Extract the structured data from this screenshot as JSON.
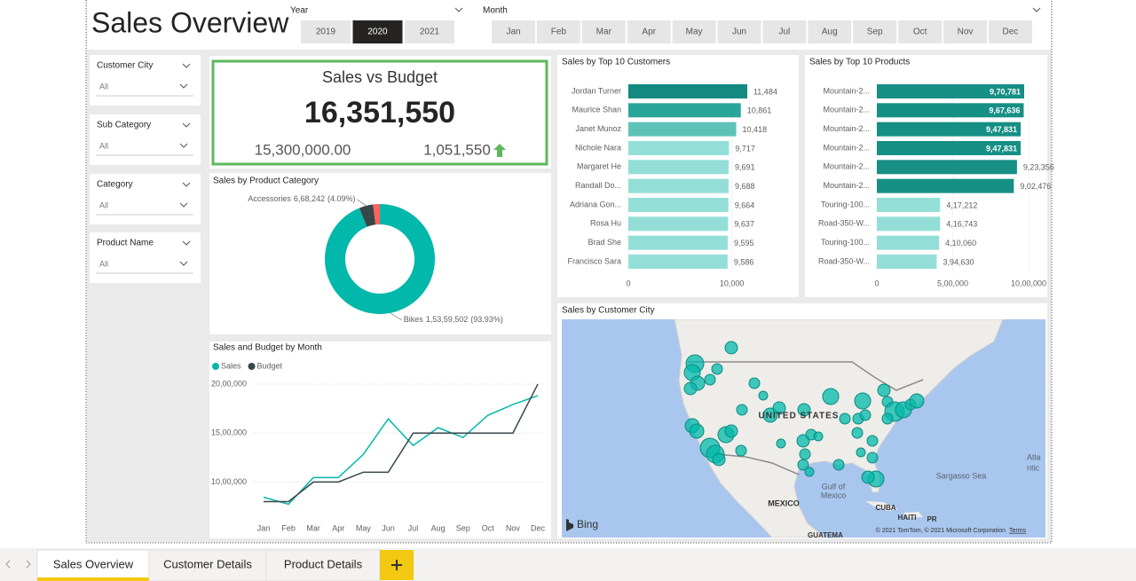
{
  "header": {
    "title": "Sales Overview"
  },
  "year_slicer": {
    "label": "Year",
    "options": [
      "2019",
      "2020",
      "2021"
    ],
    "selected": "2020"
  },
  "month_slicer": {
    "label": "Month",
    "options": [
      "Jan",
      "Feb",
      "Mar",
      "Apr",
      "May",
      "Jun",
      "Jul",
      "Aug",
      "Sep",
      "Oct",
      "Nov",
      "Dec"
    ]
  },
  "filters": [
    {
      "label": "Customer City",
      "value": "All"
    },
    {
      "label": "Sub Category",
      "value": "All"
    },
    {
      "label": "Category",
      "value": "All"
    },
    {
      "label": "Product Name",
      "value": "All"
    }
  ],
  "kpi": {
    "title": "Sales vs Budget",
    "value": "16,351,550",
    "target": "15,300,000.00",
    "variance": "1,051,550"
  },
  "chart_data": [
    {
      "type": "donut",
      "title": "Sales by Product Category",
      "categories": [
        "Bikes",
        "Accessories",
        null
      ],
      "values": [
        15359502,
        668242,
        323806
      ],
      "value_labels": [
        "1,53,59,502",
        "6,68,242",
        null
      ],
      "percent_labels": [
        "(93.93%)",
        "(4.09%)",
        null
      ],
      "colors": [
        "#01b8aa",
        "#374649",
        "#fd625e"
      ]
    },
    {
      "type": "hbar",
      "title": "Sales by Top 10 Customers",
      "categories": [
        "Jordan Turner",
        "Maurice Shan",
        "Janet Munoz",
        "Nichole Nara",
        "Margaret He",
        "Randall Do...",
        "Adriana Gon...",
        "Rosa Hu",
        "Brad She",
        "Francisco Sara"
      ],
      "values": [
        11484,
        10861,
        10418,
        9717,
        9691,
        9688,
        9664,
        9637,
        9595,
        9586
      ],
      "value_labels": [
        "11,484",
        "10,861",
        "10,418",
        "9,717",
        "9,691",
        "9,688",
        "9,664",
        "9,637",
        "9,595",
        "9,586"
      ],
      "colors": [
        "#138a80",
        "#2aa59a",
        "#5fc2b9",
        "#93dfd8",
        "#93dfd8",
        "#93dfd8",
        "#93dfd8",
        "#93dfd8",
        "#93dfd8",
        "#93dfd8"
      ],
      "xlim": [
        0,
        15000
      ],
      "xticks": [
        0,
        {
          "value": 10000,
          "label": "10,000"
        }
      ]
    },
    {
      "type": "hbar",
      "title": "Sales by Top 10 Products",
      "categories": [
        "Mountain-2...",
        "Mountain-2...",
        "Mountain-2...",
        "Mountain-2...",
        "Mountain-2...",
        "Mountain-2...",
        "Touring-100...",
        "Road-350-W...",
        "Touring-100...",
        "Road-350-W..."
      ],
      "values": [
        970781,
        967636,
        947831,
        947831,
        923356,
        902476,
        417212,
        416743,
        410060,
        394630
      ],
      "value_labels": [
        "9,70,781",
        "9,67,636",
        "9,47,831",
        "9,47,831",
        "9,23,356",
        "9,02,476",
        "4,17,212",
        "4,16,743",
        "4,10,060",
        "3,94,630"
      ],
      "colors": [
        "#168f85",
        "#168f85",
        "#168f85",
        "#168f85",
        "#168f85",
        "#168f85",
        "#93dfd8",
        "#93dfd8",
        "#93dfd8",
        "#93dfd8"
      ],
      "xlim": [
        0,
        1000000
      ],
      "xticks": [
        0,
        {
          "value": 500000,
          "label": "5,00,000"
        },
        {
          "value": 1000000,
          "label": "10,00,000"
        }
      ]
    },
    {
      "type": "line",
      "title": "Sales and Budget by Month",
      "categories": [
        "Jan",
        "Feb",
        "Mar",
        "Apr",
        "May",
        "Jun",
        "Jul",
        "Aug",
        "Sep",
        "Oct",
        "Nov",
        "Dec"
      ],
      "series": [
        {
          "name": "Sales",
          "color": "#01b8aa",
          "values": [
            845000,
            773000,
            1045000,
            1045000,
            1282000,
            1645000,
            1373000,
            1555000,
            1455000,
            1682000,
            1791000,
            1882000
          ]
        },
        {
          "name": "Budget",
          "color": "#374649",
          "values": [
            800000,
            800000,
            1000000,
            1000000,
            1100000,
            1100000,
            1500000,
            1500000,
            1500000,
            1500000,
            1500000,
            2000000
          ]
        }
      ],
      "ylim": [
        650000,
        2100000
      ],
      "yticks": [
        {
          "value": 1000000,
          "label": "10,00,000"
        },
        {
          "value": 1500000,
          "label": "15,00,000"
        },
        {
          "value": 2000000,
          "label": "20,00,000"
        }
      ],
      "grid": true,
      "legend": "top-left"
    }
  ],
  "map": {
    "title": "Sales by Customer City",
    "labels": [
      "UNITED STATES",
      "MEXICO",
      "Gulf of",
      "Mexico",
      "Sargasso Sea",
      "CUBA",
      "HAITI",
      "PR",
      "Atla",
      "ntic",
      "GUATEMA"
    ],
    "logo": "Bing",
    "attribution": "© 2021 TomTom, © 2021 Microsoft Corporation",
    "terms": "Terms"
  },
  "tabs": {
    "items": [
      "Sales Overview",
      "Customer Details",
      "Product Details"
    ],
    "active": "Sales Overview"
  }
}
